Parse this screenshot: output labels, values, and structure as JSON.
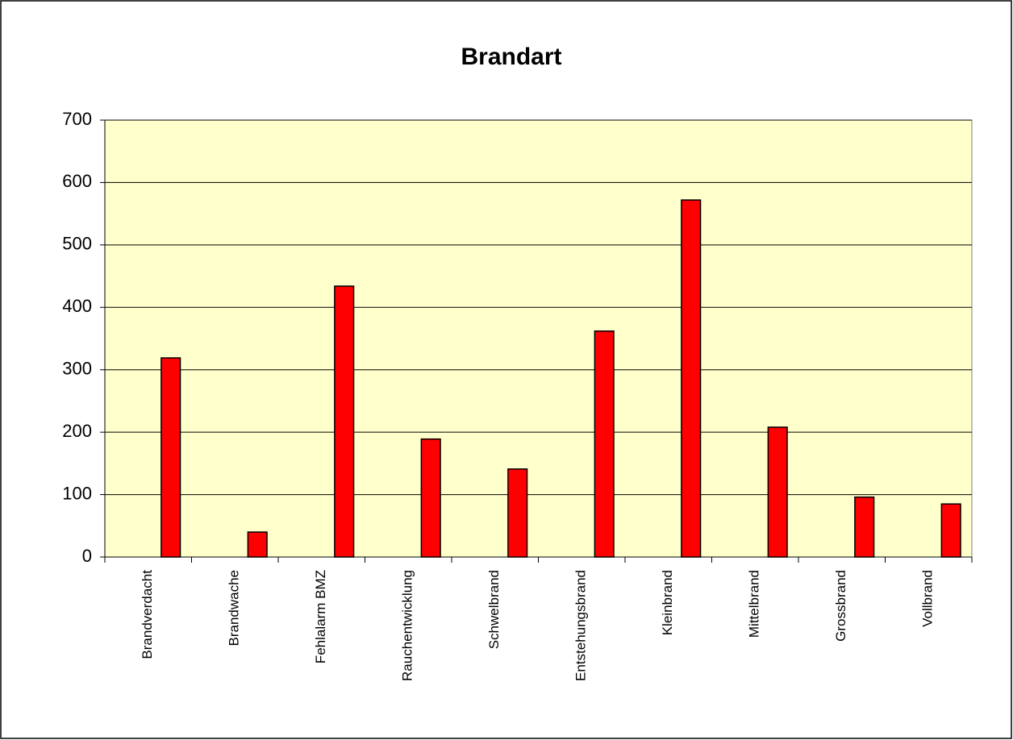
{
  "chart_data": {
    "type": "bar",
    "title": "Brandart",
    "categories": [
      "Brandverdacht",
      "Brandwache",
      "Fehlalarm BMZ",
      "Rauchentwicklung",
      "Schwelbrand",
      "Entstehungsbrand",
      "Kleinbrand",
      "Mittelbrand",
      "Grossbrand",
      "Vollbrand"
    ],
    "values": [
      319,
      40,
      434,
      189,
      141,
      362,
      572,
      208,
      96,
      85
    ],
    "color": "#ff0000",
    "ylim": [
      0,
      700
    ],
    "yticks": [
      0,
      100,
      200,
      300,
      400,
      500,
      600,
      700
    ],
    "grid": true
  }
}
